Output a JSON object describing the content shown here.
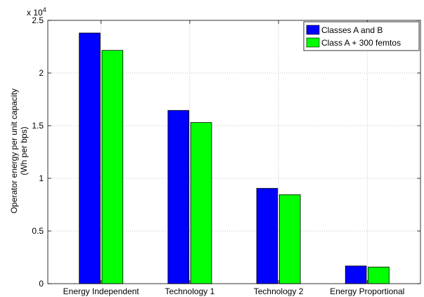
{
  "chart_data": {
    "type": "bar",
    "categories": [
      "Energy Independent",
      "Technology 1",
      "Technology 2",
      "Energy Proportional"
    ],
    "series": [
      {
        "name": "Classes A and B",
        "values": [
          23800,
          16450,
          9050,
          1680
        ]
      },
      {
        "name": "Class A + 300 femtos",
        "values": [
          22150,
          15300,
          8450,
          1580
        ]
      }
    ],
    "ylabel_line1": "Operator energy per unit capacity",
    "ylabel_line2": "(Wh per bps)",
    "xlabel": "",
    "title": "",
    "ylim": [
      0,
      25000
    ],
    "y_ticks": [
      0,
      5000,
      10000,
      15000,
      20000,
      25000
    ],
    "y_tick_labels": [
      "0",
      "0.5",
      "1",
      "1.5",
      "2",
      "2.5"
    ],
    "y_multiplier_base": "x 10",
    "y_multiplier_exponent": "4",
    "grid": true,
    "legend_position": "top-right",
    "colors": [
      "#0000ff",
      "#00ff00"
    ]
  }
}
